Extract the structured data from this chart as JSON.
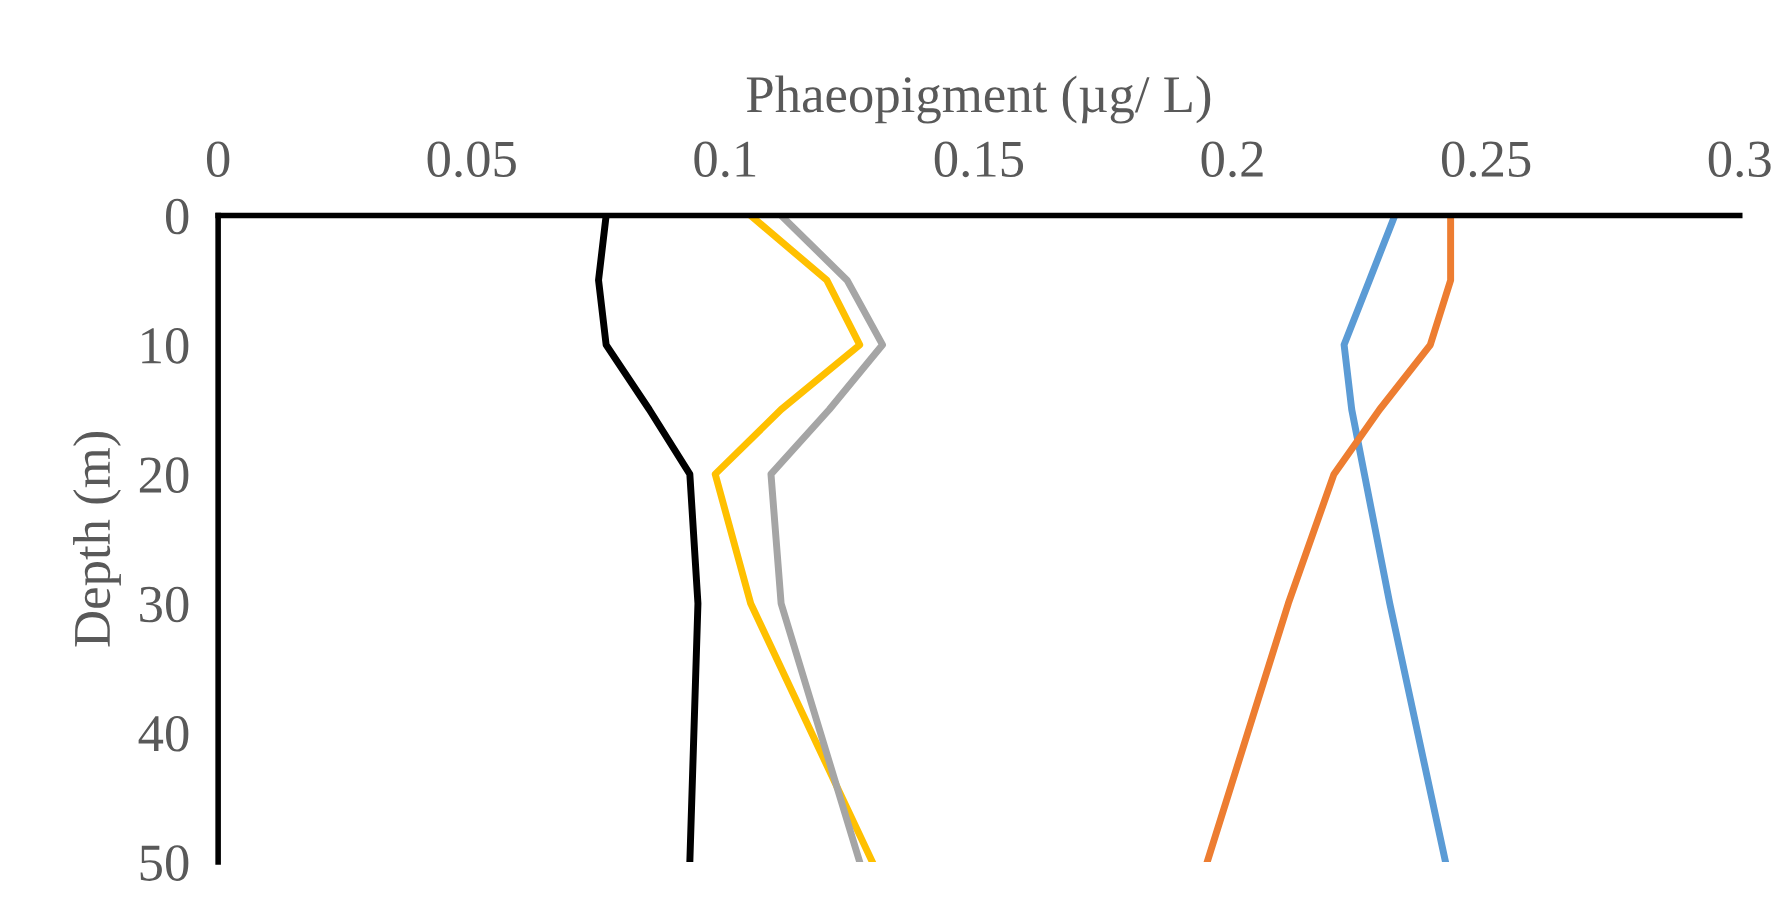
{
  "chart_data": {
    "type": "line",
    "xlabel": "Phaeopigment (µg/ L)",
    "ylabel": "Depth (m)",
    "xlim": [
      0,
      0.3
    ],
    "xticks": [
      0,
      0.05,
      0.1,
      0.15,
      0.2,
      0.25,
      0.3
    ],
    "ylim": [
      50,
      0
    ],
    "yticks": [
      0,
      10,
      20,
      30,
      40,
      50
    ],
    "grid": false,
    "legend": false,
    "marker": "none",
    "line_style": "solid",
    "series": [
      {
        "color": "#000000",
        "x": [
          0.0765,
          0.075,
          0.0765,
          0.085,
          0.093,
          0.0946,
          0.093
        ],
        "values": [
          0,
          5,
          10,
          15,
          20,
          30,
          50
        ]
      },
      {
        "color": "#ffc000",
        "x": [
          0.105,
          0.12,
          0.1265,
          0.111,
          0.098,
          0.105,
          0.129
        ],
        "values": [
          0,
          5,
          10,
          15,
          20,
          30,
          50
        ]
      },
      {
        "color": "#a5a5a5",
        "x": [
          0.111,
          0.124,
          0.131,
          0.1205,
          0.109,
          0.111,
          0.1265
        ],
        "values": [
          0,
          5,
          10,
          15,
          20,
          30,
          50
        ]
      },
      {
        "color": "#5b9bd5",
        "x": [
          0.232,
          0.227,
          0.222,
          0.2235,
          0.226,
          0.231,
          0.242
        ],
        "values": [
          0,
          5,
          10,
          15,
          20,
          30,
          50
        ]
      },
      {
        "color": "#ed7d31",
        "x": [
          0.243,
          0.243,
          0.239,
          0.229,
          0.22,
          0.211,
          0.195
        ],
        "values": [
          0,
          5,
          10,
          15,
          20,
          30,
          50
        ]
      }
    ]
  }
}
